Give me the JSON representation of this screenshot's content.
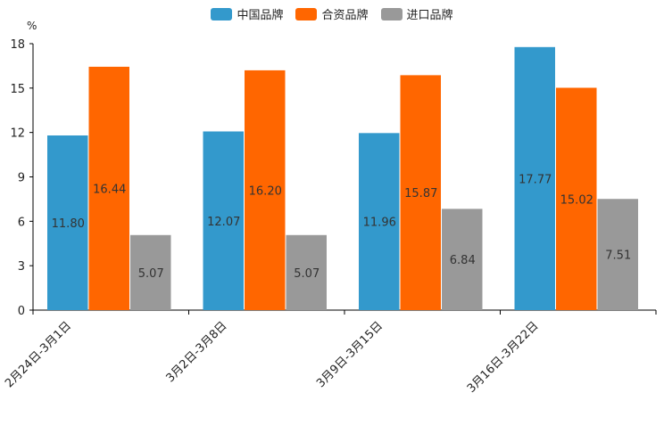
{
  "chart_data": {
    "type": "bar",
    "unit_label": "%",
    "categories": [
      "2月24日-3月1日",
      "3月2日-3月8日",
      "3月9日-3月15日",
      "3月16日-3月22日"
    ],
    "series": [
      {
        "name": "中国品牌",
        "color": "#3399CC",
        "values": [
          11.8,
          12.07,
          11.96,
          17.77
        ],
        "labels": [
          "11.80",
          "12.07",
          "11.96",
          "17.77"
        ]
      },
      {
        "name": "合资品牌",
        "color": "#FF6600",
        "values": [
          16.44,
          16.2,
          15.87,
          15.02
        ],
        "labels": [
          "16.44",
          "16.20",
          "15.87",
          "15.02"
        ]
      },
      {
        "name": "进口品牌",
        "color": "#999999",
        "values": [
          5.07,
          5.07,
          6.84,
          7.51
        ],
        "labels": [
          "5.07",
          "5.07",
          "6.84",
          "7.51"
        ]
      }
    ],
    "ylim": [
      0,
      18
    ],
    "yticks": [
      "0",
      "3",
      "6",
      "9",
      "12",
      "15",
      "18"
    ],
    "legend_position": "top-center"
  }
}
